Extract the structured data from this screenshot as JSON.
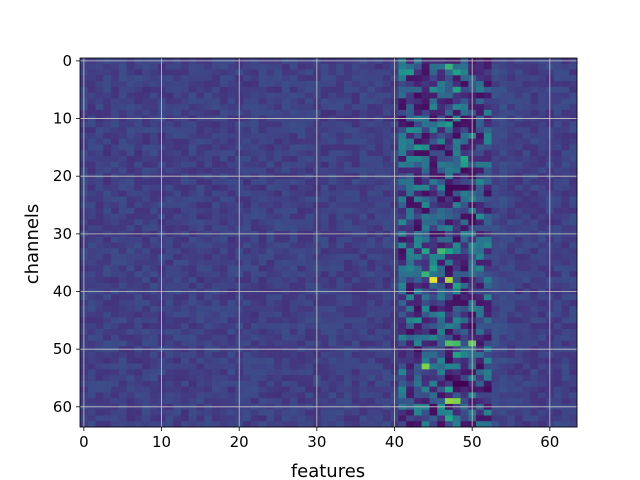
{
  "chart_data": {
    "type": "heatmap",
    "title": "",
    "xlabel": "features",
    "ylabel": "channels",
    "n_cols": 64,
    "n_rows": 64,
    "xlim": [
      -0.5,
      63.5
    ],
    "ylim": [
      63.5,
      -0.5
    ],
    "y_inverted": true,
    "x_ticks": [
      0,
      10,
      20,
      30,
      40,
      50,
      60
    ],
    "y_ticks": [
      0,
      10,
      20,
      30,
      40,
      50,
      60
    ],
    "grid": true,
    "colormap": "viridis",
    "background_level": 0.24,
    "active_band_columns": [
      41,
      52
    ],
    "hot_spots": [
      {
        "col": 47,
        "row": 1,
        "value": 0.78
      },
      {
        "col": 41,
        "row": 2,
        "value": 0.62
      },
      {
        "col": 42,
        "row": 2,
        "value": 0.66
      },
      {
        "col": 48,
        "row": 2,
        "value": 0.7
      },
      {
        "col": 49,
        "row": 2,
        "value": 0.55
      },
      {
        "col": 45,
        "row": 5,
        "value": 0.6
      },
      {
        "col": 48,
        "row": 5,
        "value": 0.72
      },
      {
        "col": 47,
        "row": 11,
        "value": 0.66
      },
      {
        "col": 42,
        "row": 12,
        "value": 0.6
      },
      {
        "col": 46,
        "row": 11,
        "value": 0.58
      },
      {
        "col": 43,
        "row": 15,
        "value": 0.66
      },
      {
        "col": 44,
        "row": 15,
        "value": 0.6
      },
      {
        "col": 49,
        "row": 17,
        "value": 0.75
      },
      {
        "col": 49,
        "row": 18,
        "value": 0.68
      },
      {
        "col": 51,
        "row": 27,
        "value": 0.6
      },
      {
        "col": 43,
        "row": 32,
        "value": 0.58
      },
      {
        "col": 44,
        "row": 33,
        "value": 0.72
      },
      {
        "col": 46,
        "row": 33,
        "value": 0.8
      },
      {
        "col": 47,
        "row": 33,
        "value": 0.7
      },
      {
        "col": 45,
        "row": 36,
        "value": 0.68
      },
      {
        "col": 44,
        "row": 37,
        "value": 0.78
      },
      {
        "col": 45,
        "row": 38,
        "value": 0.98
      },
      {
        "col": 47,
        "row": 38,
        "value": 0.92
      },
      {
        "col": 48,
        "row": 39,
        "value": 0.72
      },
      {
        "col": 43,
        "row": 45,
        "value": 0.62
      },
      {
        "col": 47,
        "row": 49,
        "value": 0.82
      },
      {
        "col": 48,
        "row": 49,
        "value": 0.8
      },
      {
        "col": 50,
        "row": 49,
        "value": 0.85
      },
      {
        "col": 48,
        "row": 51,
        "value": 0.72
      },
      {
        "col": 44,
        "row": 53,
        "value": 0.88
      },
      {
        "col": 47,
        "row": 57,
        "value": 0.72
      },
      {
        "col": 47,
        "row": 59,
        "value": 0.9
      },
      {
        "col": 48,
        "row": 59,
        "value": 0.88
      },
      {
        "col": 46,
        "row": 60,
        "value": 0.6
      },
      {
        "col": 47,
        "row": 62,
        "value": 0.74
      }
    ],
    "cold_spots": [
      {
        "col": 47,
        "row": 22,
        "value": 0.02
      },
      {
        "col": 48,
        "row": 22,
        "value": 0.03
      },
      {
        "col": 49,
        "row": 22,
        "value": 0.02
      },
      {
        "col": 47,
        "row": 23,
        "value": 0.04
      },
      {
        "col": 48,
        "row": 24,
        "value": 0.05
      },
      {
        "col": 44,
        "row": 26,
        "value": 0.05
      },
      {
        "col": 50,
        "row": 27,
        "value": 0.04
      },
      {
        "col": 48,
        "row": 56,
        "value": 0.0
      },
      {
        "col": 49,
        "row": 56,
        "value": 0.0
      },
      {
        "col": 47,
        "row": 55,
        "value": 0.03
      },
      {
        "col": 45,
        "row": 47,
        "value": 0.05
      },
      {
        "col": 46,
        "row": 15,
        "value": 0.05
      },
      {
        "col": 44,
        "row": 8,
        "value": 0.05
      }
    ]
  }
}
